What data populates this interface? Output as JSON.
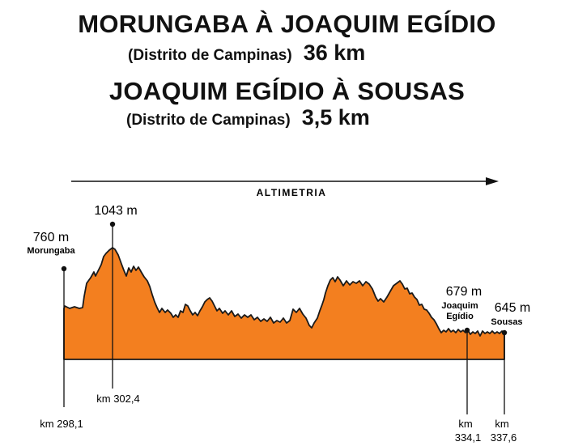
{
  "header": {
    "route1_title": "MORUNGABA À JOAQUIM EGÍDIO",
    "route1_subtitle": "(Distrito de Campinas)",
    "route1_distance": "36 km",
    "route2_title": "JOAQUIM EGÍDIO À SOUSAS",
    "route2_subtitle": "(Distrito de Campinas)",
    "route2_distance": "3,5 km"
  },
  "profile": {
    "axis_label": "ALTIMETRIA",
    "fill_color": "#f37f1f",
    "markers": [
      {
        "altitude": "760 m",
        "place": "Morungaba",
        "km_prefix": "",
        "km": "km 298,1"
      },
      {
        "altitude": "1043 m",
        "place": "",
        "km_prefix": "",
        "km": "km 302,4"
      },
      {
        "altitude": "679 m",
        "place_line1": "Joaquim",
        "place_line2": "Egídio",
        "km_prefix": "km",
        "km": "334,1"
      },
      {
        "altitude": "645 m",
        "place": "Sousas",
        "km_prefix": "km",
        "km": "337,6"
      }
    ]
  }
}
